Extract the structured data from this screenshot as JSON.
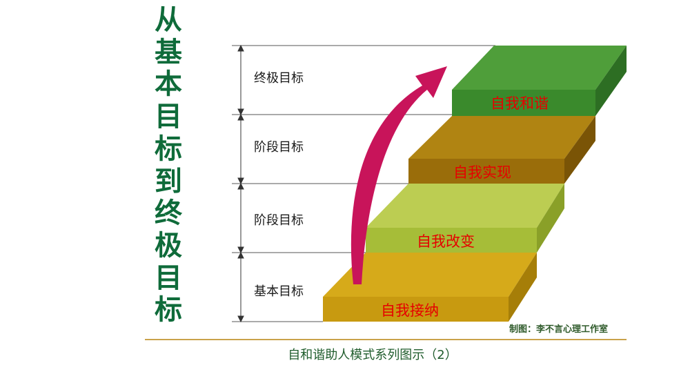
{
  "title_chars": [
    "从",
    "基",
    "本",
    "目",
    "标",
    "到",
    "终",
    "极",
    "目",
    "标"
  ],
  "levels": [
    "终极目标",
    "阶段目标",
    "阶段目标",
    "基本目标"
  ],
  "steps": [
    {
      "label": "自我接纳",
      "color": "#c89a10"
    },
    {
      "label": "自我改变",
      "color": "#a6bd38"
    },
    {
      "label": "自我实现",
      "color": "#9a6d0a"
    },
    {
      "label": "自我和谐",
      "color": "#3a8a2c"
    }
  ],
  "credit": "制图：李不言心理工作室",
  "caption": "自和谐助人模式系列图示（2）",
  "colors": {
    "title": "#0f6b3a",
    "arrow": "#c8145a",
    "step_label": "#e60000"
  }
}
